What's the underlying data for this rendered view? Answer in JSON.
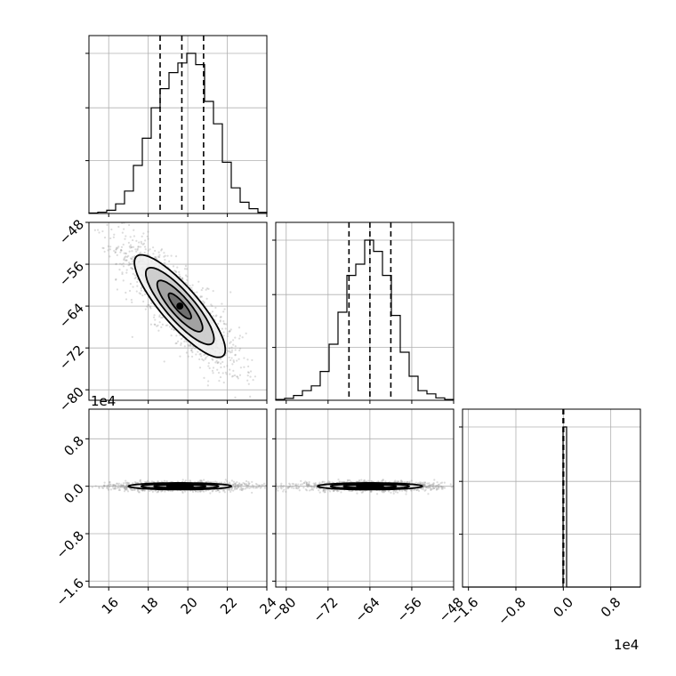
{
  "chart_data": {
    "type": "corner",
    "parameters": [
      {
        "range": [
          15,
          24
        ],
        "ticks": [
          16,
          18,
          20,
          22,
          24
        ],
        "tick_labels": [
          "16",
          "18",
          "20",
          "22",
          "24"
        ]
      },
      {
        "range": [
          -82,
          -48
        ],
        "ticks": [
          -80,
          -72,
          -64,
          -56,
          -48
        ],
        "tick_labels": [
          "−80",
          "−72",
          "−64",
          "−56",
          "−48"
        ]
      },
      {
        "range": [
          -1.7,
          1.3
        ],
        "ticks": [
          -1.6,
          -0.8,
          0.0,
          0.8
        ],
        "tick_labels": [
          "−1.6",
          "−0.8",
          "0.0",
          "0.8"
        ],
        "offset_text": "1e4"
      }
    ],
    "quantiles": [
      [
        18.6,
        19.7,
        20.8
      ],
      [
        -68.0,
        -64.0,
        -60.0
      ],
      [
        -0.005,
        0.0,
        0.005
      ]
    ],
    "hist1d": [
      {
        "edges": [
          15.0,
          15.45,
          15.9,
          16.35,
          16.8,
          17.25,
          17.7,
          18.15,
          18.6,
          19.05,
          19.5,
          19.95,
          20.4,
          20.85,
          21.3,
          21.75,
          22.2,
          22.65,
          23.1,
          23.55,
          24.0
        ],
        "counts": [
          0.003,
          0.008,
          0.02,
          0.06,
          0.14,
          0.3,
          0.47,
          0.66,
          0.78,
          0.88,
          0.94,
          1.0,
          0.93,
          0.7,
          0.56,
          0.32,
          0.16,
          0.07,
          0.03,
          0.007
        ]
      },
      {
        "edges": [
          -82,
          -80.3,
          -78.6,
          -76.9,
          -75.2,
          -73.5,
          -71.8,
          -70.1,
          -68.4,
          -66.7,
          -65.0,
          -63.3,
          -61.6,
          -59.9,
          -58.2,
          -56.5,
          -54.8,
          -53.1,
          -51.4,
          -49.7,
          -48.0
        ],
        "counts": [
          0.005,
          0.012,
          0.03,
          0.06,
          0.09,
          0.18,
          0.35,
          0.55,
          0.78,
          0.85,
          1.0,
          0.93,
          0.78,
          0.53,
          0.3,
          0.15,
          0.06,
          0.04,
          0.015,
          0.005
        ]
      },
      {
        "edges": [
          -1.7,
          -0.005,
          0.055,
          1.3
        ],
        "counts": [
          0.0,
          1.0,
          0.0
        ]
      }
    ],
    "pairs": [
      {
        "row": 1,
        "col": 0,
        "mean": [
          19.6,
          -64.0
        ],
        "corr": -0.85,
        "sigma": [
          1.15,
          4.9
        ],
        "levels": [
          0.5,
          1.0,
          1.5,
          2.0
        ]
      },
      {
        "row": 2,
        "col": 0,
        "mean": [
          19.6,
          0.0
        ],
        "corr": 0.0,
        "sigma": [
          1.3,
          0.028
        ],
        "levels": [
          0.5,
          1.0,
          1.5,
          2.0
        ]
      },
      {
        "row": 2,
        "col": 1,
        "mean": [
          -64.0,
          0.0
        ],
        "corr": 0.0,
        "sigma": [
          5.0,
          0.028
        ],
        "levels": [
          0.5,
          1.0,
          1.5,
          2.0
        ]
      }
    ]
  }
}
